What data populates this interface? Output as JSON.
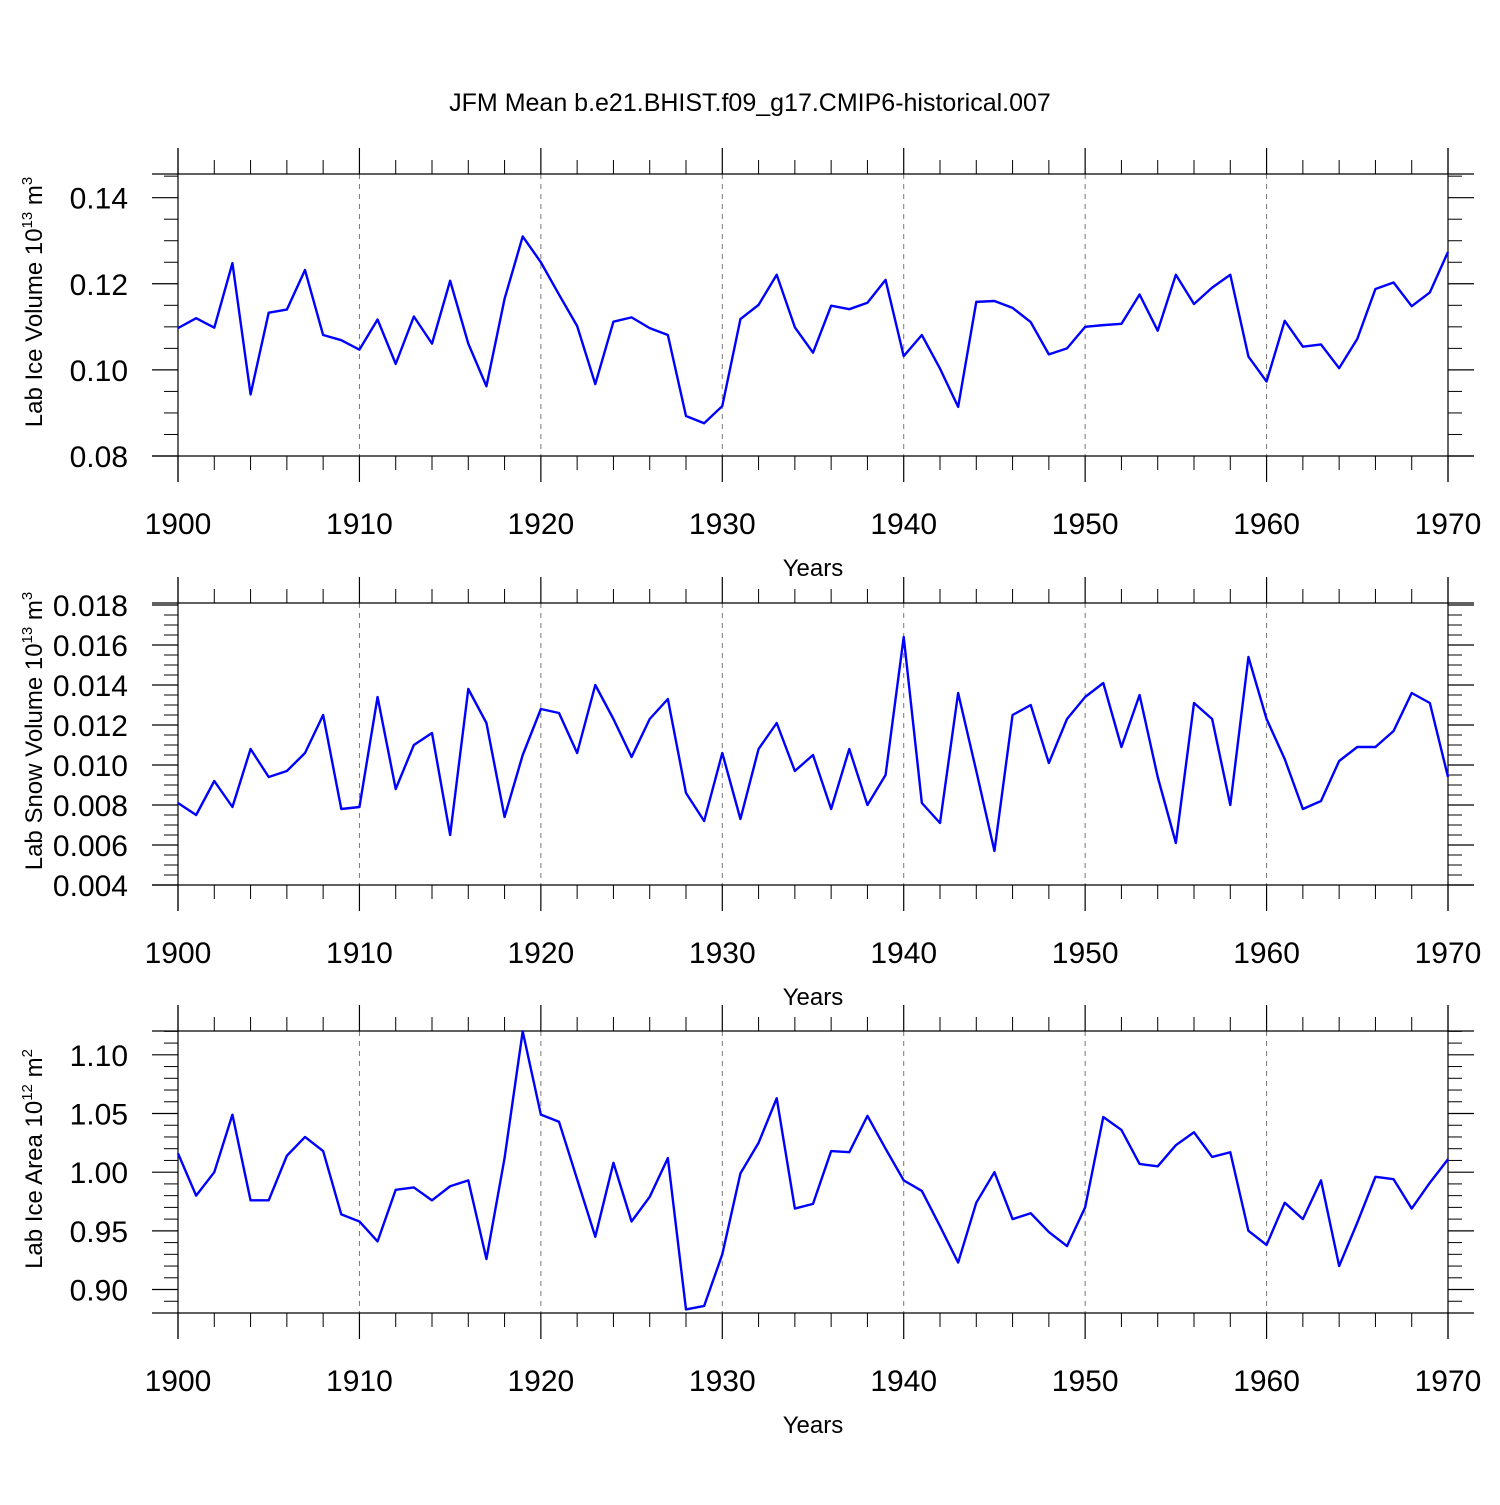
{
  "title": "JFM Mean b.e21.BHIST.f09_g17.CMIP6-historical.007",
  "series_color": "#0000ff",
  "chart_data": [
    {
      "type": "line",
      "ylabel": {
        "main": "Lab Ice Volume 10",
        "sup": "13",
        "unit": " m",
        "unit_sup": "3"
      },
      "xlabel": "Years",
      "xlim": [
        1900,
        1970
      ],
      "ylim": [
        0.08,
        0.1455
      ],
      "yticks": [
        0.08,
        0.1,
        0.12,
        0.14
      ],
      "ytick_labels": [
        "0.08",
        "0.10",
        "0.12",
        "0.14"
      ],
      "yminor_step": 0.005,
      "xticks": [
        1900,
        1910,
        1920,
        1930,
        1940,
        1950,
        1960,
        1970
      ],
      "xtick_labels": [
        "1900",
        "1910",
        "1920",
        "1930",
        "1940",
        "1950",
        "1960",
        "1970"
      ],
      "x_start": 1900,
      "values": [
        0.1097,
        0.112,
        0.1098,
        0.1248,
        0.0943,
        0.1133,
        0.114,
        0.1232,
        0.1081,
        0.1069,
        0.1047,
        0.1117,
        0.1014,
        0.1124,
        0.1061,
        0.1207,
        0.1061,
        0.0962,
        0.1165,
        0.131,
        0.125,
        0.1175,
        0.1102,
        0.0967,
        0.1112,
        0.1122,
        0.1097,
        0.1081,
        0.0893,
        0.0876,
        0.0916,
        0.1118,
        0.1151,
        0.1221,
        0.1099,
        0.104,
        0.1149,
        0.1141,
        0.1156,
        0.1209,
        0.1032,
        0.1081,
        0.1003,
        0.0914,
        0.1158,
        0.116,
        0.1144,
        0.1111,
        0.1036,
        0.105,
        0.11,
        0.1104,
        0.1107,
        0.1175,
        0.1091,
        0.1221,
        0.1153,
        0.1191,
        0.1221,
        0.1031,
        0.0973,
        0.1114,
        0.1054,
        0.1059,
        0.1004,
        0.1072,
        0.1188,
        0.1203,
        0.1148,
        0.118,
        0.1274
      ]
    },
    {
      "type": "line",
      "ylabel": {
        "main": "Lab Snow Volume 10",
        "sup": "13",
        "unit": " m",
        "unit_sup": "3"
      },
      "xlabel": "Years",
      "xlim": [
        1900,
        1970
      ],
      "ylim": [
        0.004,
        0.0181
      ],
      "yticks": [
        0.004,
        0.006,
        0.008,
        0.01,
        0.012,
        0.014,
        0.016,
        0.018
      ],
      "ytick_labels": [
        "0.004",
        "0.006",
        "0.008",
        "0.010",
        "0.012",
        "0.014",
        "0.016",
        "0.018"
      ],
      "yminor_step": 0.0005,
      "xticks": [
        1900,
        1910,
        1920,
        1930,
        1940,
        1950,
        1960,
        1970
      ],
      "xtick_labels": [
        "1900",
        "1910",
        "1920",
        "1930",
        "1940",
        "1950",
        "1960",
        "1970"
      ],
      "x_start": 1900,
      "values": [
        0.0081,
        0.0075,
        0.0092,
        0.0079,
        0.0108,
        0.0094,
        0.0097,
        0.0106,
        0.0125,
        0.0078,
        0.0079,
        0.0134,
        0.0088,
        0.011,
        0.0116,
        0.0065,
        0.0138,
        0.0121,
        0.0074,
        0.0105,
        0.0128,
        0.0126,
        0.0106,
        0.014,
        0.0123,
        0.0104,
        0.0123,
        0.0133,
        0.0086,
        0.0072,
        0.0106,
        0.0073,
        0.0108,
        0.0121,
        0.0097,
        0.0105,
        0.0078,
        0.0108,
        0.008,
        0.0095,
        0.0164,
        0.0081,
        0.0071,
        0.0136,
        0.0097,
        0.0057,
        0.0125,
        0.013,
        0.0101,
        0.0123,
        0.0134,
        0.0141,
        0.0109,
        0.0135,
        0.0094,
        0.0061,
        0.0131,
        0.0123,
        0.008,
        0.0154,
        0.0123,
        0.0103,
        0.0078,
        0.0082,
        0.0102,
        0.0109,
        0.0109,
        0.0117,
        0.0136,
        0.0131,
        0.0094
      ]
    },
    {
      "type": "line",
      "ylabel": {
        "main": "Lab Ice Area 10",
        "sup": "12",
        "unit": " m",
        "unit_sup": "2"
      },
      "xlabel": "Years",
      "xlim": [
        1900,
        1970
      ],
      "ylim": [
        0.88,
        1.1203
      ],
      "yticks": [
        0.9,
        0.95,
        1.0,
        1.05,
        1.1
      ],
      "ytick_labels": [
        "0.90",
        "0.95",
        "1.00",
        "1.05",
        "1.10"
      ],
      "yminor_step": 0.01,
      "xticks": [
        1900,
        1910,
        1920,
        1930,
        1940,
        1950,
        1960,
        1970
      ],
      "xtick_labels": [
        "1900",
        "1910",
        "1920",
        "1930",
        "1940",
        "1950",
        "1960",
        "1970"
      ],
      "x_start": 1900,
      "values": [
        1.016,
        0.98,
        1.0,
        1.049,
        0.976,
        0.976,
        1.014,
        1.03,
        1.018,
        0.964,
        0.958,
        0.941,
        0.985,
        0.987,
        0.976,
        0.988,
        0.993,
        0.926,
        1.012,
        1.12,
        1.049,
        1.043,
        0.994,
        0.945,
        1.008,
        0.958,
        0.979,
        1.012,
        0.883,
        0.886,
        0.93,
        0.999,
        1.025,
        1.063,
        0.969,
        0.973,
        1.018,
        1.017,
        1.048,
        1.02,
        0.993,
        0.984,
        0.954,
        0.923,
        0.974,
        1.0,
        0.96,
        0.965,
        0.949,
        0.937,
        0.97,
        1.047,
        1.036,
        1.007,
        1.005,
        1.023,
        1.034,
        1.013,
        1.017,
        0.95,
        0.938,
        0.974,
        0.96,
        0.993,
        0.92,
        0.957,
        0.996,
        0.994,
        0.969,
        0.991,
        1.011
      ]
    }
  ]
}
